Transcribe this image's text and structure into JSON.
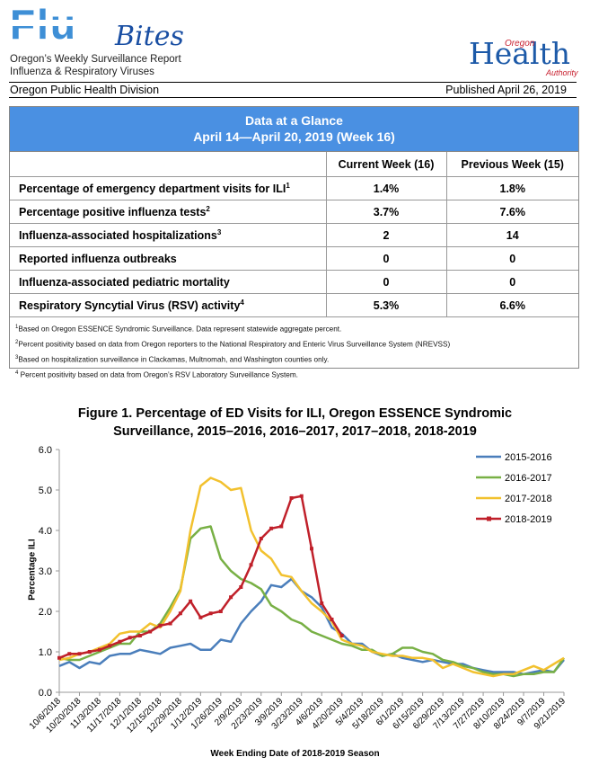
{
  "header": {
    "logo_main": "Flu",
    "logo_script": "Bites",
    "subtitle_1": "Oregon’s Weekly Surveillance Report",
    "subtitle_2": "Influenza & Respiratory Viruses",
    "org_logo_top": "Oregon",
    "org_logo_main": "Health",
    "org_logo_bottom": "Authority",
    "division": "Oregon Public Health Division",
    "published": "Published April 26, 2019"
  },
  "glance": {
    "title": "Data at a Glance",
    "subtitle": "April 14—April 20, 2019 (Week 16)",
    "col_current": "Current Week (16)",
    "col_previous": "Previous Week (15)",
    "rows": [
      {
        "label": "Percentage of emergency department visits for ILI",
        "sup": "1",
        "current": "1.4%",
        "previous": "1.8%"
      },
      {
        "label": "Percentage positive influenza tests",
        "sup": "2",
        "current": "3.7%",
        "previous": "7.6%"
      },
      {
        "label": "Influenza-associated hospitalizations",
        "sup": "3",
        "current": "2",
        "previous": "14"
      },
      {
        "label": "Reported influenza outbreaks",
        "sup": "",
        "current": "0",
        "previous": "0"
      },
      {
        "label": "Influenza-associated pediatric mortality",
        "sup": "",
        "current": "0",
        "previous": "0"
      },
      {
        "label": "Respiratory Syncytial Virus (RSV) activity",
        "sup": "4",
        "current": "5.3%",
        "previous": "6.6%"
      }
    ],
    "footnotes": [
      {
        "sup": "1",
        "text": "Based on Oregon ESSENCE Syndromic Surveillance. Data represent statewide aggregate percent."
      },
      {
        "sup": "2",
        "text": "Percent positivity based on data from Oregon reporters to the National Respiratory and Enteric Virus Surveillance System (NREVSS)"
      },
      {
        "sup": "3",
        "text": "Based on hospitalization surveillance in Clackamas, Multnomah, and Washington counties only."
      },
      {
        "sup": "4",
        "text": " Percent positivity based on data from Oregon’s RSV Laboratory Surveillance System."
      }
    ]
  },
  "chart_data": {
    "type": "line",
    "title_line1": "Figure 1. Percentage of ED Visits for ILI, Oregon ESSENCE Syndromic",
    "title_line2": "Surveillance, 2015–2016, 2016–2017, 2017–2018, 2018-2019",
    "xlabel": "Week Ending Date of 2018-2019 Season",
    "ylabel": "Percentage ILI",
    "ylim": [
      0,
      6
    ],
    "yticks": [
      "0.0",
      "1.0",
      "2.0",
      "3.0",
      "4.0",
      "5.0",
      "6.0"
    ],
    "x_tick_labels": [
      "10/6/2018",
      "10/20/2018",
      "11/3/2018",
      "11/17/2018",
      "12/1/2018",
      "12/15/2018",
      "12/29/2018",
      "1/12/2019",
      "1/26/2019",
      "2/9/2019",
      "2/23/2019",
      "3/9/2019",
      "3/23/2019",
      "4/6/2019",
      "4/20/2019",
      "5/4/2019",
      "5/18/2019",
      "6/1/2019",
      "6/15/2019",
      "6/29/2019",
      "7/13/2019",
      "7/27/2019",
      "8/10/2019",
      "8/24/2019",
      "9/7/2019",
      "9/21/2019"
    ],
    "series": [
      {
        "name": "2015-2016",
        "color": "#4a7ebb",
        "values": [
          0.65,
          0.75,
          0.6,
          0.75,
          0.7,
          0.9,
          0.95,
          0.95,
          1.05,
          1.0,
          0.95,
          1.1,
          1.15,
          1.2,
          1.05,
          1.05,
          1.3,
          1.25,
          1.7,
          2.0,
          2.25,
          2.65,
          2.6,
          2.8,
          2.5,
          2.35,
          2.1,
          1.6,
          1.45,
          1.2,
          1.2,
          1.0,
          0.9,
          0.95,
          0.85,
          0.8,
          0.75,
          0.8,
          0.75,
          0.7,
          0.7,
          0.6,
          0.55,
          0.5,
          0.5,
          0.5,
          0.45,
          0.5,
          0.55,
          0.5,
          0.8
        ]
      },
      {
        "name": "2016-2017",
        "color": "#78b045",
        "values": [
          0.85,
          0.8,
          0.8,
          0.9,
          1.0,
          1.1,
          1.2,
          1.2,
          1.5,
          1.5,
          1.7,
          2.1,
          2.55,
          3.8,
          4.05,
          4.1,
          3.3,
          3.0,
          2.8,
          2.7,
          2.55,
          2.15,
          2.0,
          1.8,
          1.7,
          1.5,
          1.4,
          1.3,
          1.2,
          1.15,
          1.05,
          1.05,
          0.9,
          0.95,
          1.1,
          1.1,
          1.0,
          0.95,
          0.8,
          0.75,
          0.65,
          0.6,
          0.5,
          0.45,
          0.45,
          0.4,
          0.45,
          0.45,
          0.5,
          0.5,
          0.85
        ]
      },
      {
        "name": "2017-2018",
        "color": "#f2c12e",
        "values": [
          0.8,
          0.85,
          0.95,
          1.0,
          1.1,
          1.2,
          1.45,
          1.5,
          1.5,
          1.7,
          1.6,
          2.0,
          2.5,
          4.0,
          5.1,
          5.3,
          5.2,
          5.0,
          5.05,
          4.0,
          3.5,
          3.3,
          2.9,
          2.85,
          2.5,
          2.2,
          2.0,
          1.75,
          1.3,
          1.2,
          1.15,
          1.0,
          0.95,
          0.9,
          0.9,
          0.85,
          0.85,
          0.8,
          0.6,
          0.7,
          0.6,
          0.5,
          0.45,
          0.4,
          0.45,
          0.45,
          0.55,
          0.65,
          0.55,
          0.7,
          0.85
        ]
      },
      {
        "name": "2018-2019",
        "color": "#c0202a",
        "values": [
          0.85,
          0.95,
          0.95,
          1.0,
          1.05,
          1.15,
          1.25,
          1.35,
          1.4,
          1.5,
          1.65,
          1.7,
          1.95,
          2.25,
          1.85,
          1.95,
          2.0,
          2.35,
          2.6,
          3.15,
          3.8,
          4.05,
          4.1,
          4.8,
          4.85,
          3.55,
          2.2,
          1.8,
          1.4
        ]
      }
    ]
  }
}
